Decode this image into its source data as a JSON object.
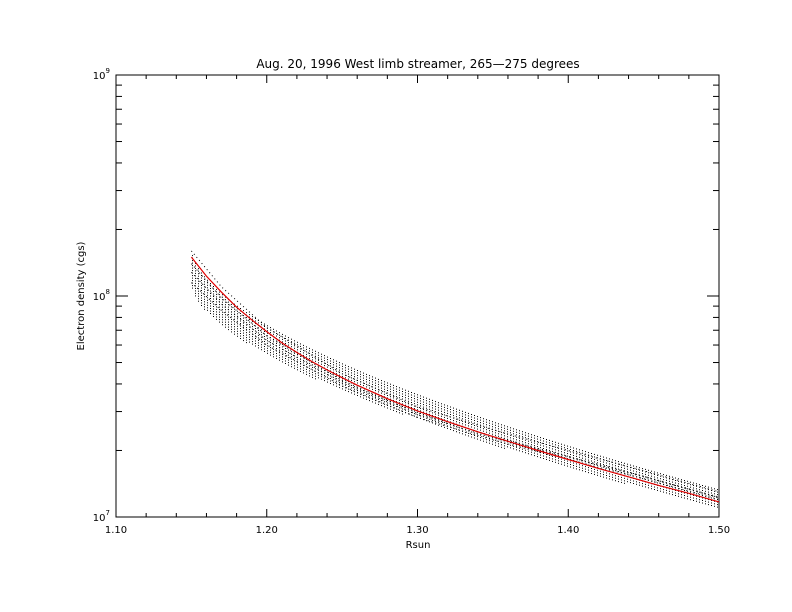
{
  "chart_data": {
    "type": "line",
    "title": "Aug. 20, 1996 West limb streamer, 265—275 degrees",
    "xlabel": "Rsun",
    "ylabel": "Electron density (cgs)",
    "xlim": [
      1.1,
      1.5
    ],
    "ylim": [
      10000000,
      1000000000
    ],
    "yscale": "log",
    "grid": false,
    "x_ticks": [
      {
        "value": 1.1,
        "label": "1.10"
      },
      {
        "value": 1.2,
        "label": "1.20"
      },
      {
        "value": 1.3,
        "label": "1.30"
      },
      {
        "value": 1.4,
        "label": "1.40"
      },
      {
        "value": 1.5,
        "label": "1.50"
      }
    ],
    "y_ticks": [
      {
        "value": 10000000,
        "base": "10",
        "exp": "7"
      },
      {
        "value": 100000000,
        "base": "10",
        "exp": "8"
      },
      {
        "value": 1000000000,
        "base": "10",
        "exp": "9"
      }
    ],
    "series": [
      {
        "color": "#e00000",
        "style": "solid",
        "x": [
          1.15,
          1.16,
          1.17,
          1.18,
          1.19,
          1.2,
          1.21,
          1.22,
          1.23,
          1.24,
          1.25,
          1.26,
          1.27,
          1.28,
          1.29,
          1.3,
          1.32,
          1.34,
          1.36,
          1.38,
          1.4,
          1.42,
          1.44,
          1.46,
          1.48,
          1.5
        ],
        "y": [
          150000000,
          123000000,
          104000000,
          89000000,
          78000000,
          69000000,
          61500000,
          55500000,
          50500000,
          46300000,
          42700000,
          39500000,
          36800000,
          34300000,
          32200000,
          30200000,
          27000000,
          24300000,
          22000000,
          20000000,
          18200000,
          16600000,
          15200000,
          13900000,
          12800000,
          11700000
        ]
      },
      {
        "color": "#000000",
        "style": "dotted",
        "x": [
          1.15,
          1.17,
          1.2,
          1.25,
          1.3,
          1.35,
          1.4,
          1.45,
          1.5
        ],
        "y": [
          140000000,
          98000000,
          66000000,
          41500000,
          29500000,
          23200000,
          18800000,
          15300000,
          12300000
        ]
      },
      {
        "color": "#000000",
        "style": "dotted",
        "x": [
          1.15,
          1.17,
          1.2,
          1.25,
          1.3,
          1.35,
          1.4,
          1.45,
          1.5
        ],
        "y": [
          128000000,
          92000000,
          63000000,
          40500000,
          29000000,
          22800000,
          18600000,
          15200000,
          12200000
        ]
      },
      {
        "color": "#000000",
        "style": "dotted",
        "x": [
          1.15,
          1.17,
          1.2,
          1.25,
          1.3,
          1.35,
          1.4,
          1.45,
          1.5
        ],
        "y": [
          115000000,
          86000000,
          60000000,
          39200000,
          28200000,
          22300000,
          18200000,
          14900000,
          12000000
        ]
      },
      {
        "color": "#000000",
        "style": "dotted",
        "x": [
          1.15,
          1.17,
          1.2,
          1.25,
          1.3,
          1.35,
          1.4,
          1.45,
          1.5
        ],
        "y": [
          160000000,
          110000000,
          72000000,
          44500000,
          31500000,
          24800000,
          20000000,
          16200000,
          13000000
        ]
      }
    ],
    "noise_band": {
      "x_start": 1.15,
      "x_end": 1.5,
      "y_top_at_start": 160000000,
      "y_top_at_end": 13300000,
      "y_bottom_at_start": 112000000,
      "y_bottom_at_end": 11000000
    }
  }
}
